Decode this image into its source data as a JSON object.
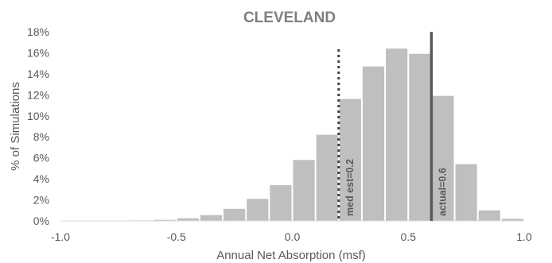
{
  "chart_data": {
    "type": "bar",
    "title": "CLEVELAND",
    "xlabel": "Annual Net Absorption (msf)",
    "ylabel": "% of Simulations",
    "xlim": [
      -1.0,
      1.0
    ],
    "ylim": [
      0,
      18
    ],
    "x_ticks": [
      "-1.0",
      "-0.5",
      "0.0",
      "0.5",
      "1.0"
    ],
    "x_tick_values": [
      -1.0,
      -0.5,
      0.0,
      0.5,
      1.0
    ],
    "y_ticks": [
      "0%",
      "2%",
      "4%",
      "6%",
      "8%",
      "10%",
      "12%",
      "14%",
      "16%",
      "18%"
    ],
    "y_tick_values": [
      0,
      2,
      4,
      6,
      8,
      10,
      12,
      14,
      16,
      18
    ],
    "bin_width": 0.1,
    "bins": [
      {
        "x0": -0.8,
        "value": 0.03
      },
      {
        "x0": -0.7,
        "value": 0.05
      },
      {
        "x0": -0.6,
        "value": 0.1
      },
      {
        "x0": -0.5,
        "value": 0.25
      },
      {
        "x0": -0.4,
        "value": 0.55
      },
      {
        "x0": -0.3,
        "value": 1.15
      },
      {
        "x0": -0.2,
        "value": 2.1
      },
      {
        "x0": -0.1,
        "value": 3.4
      },
      {
        "x0": 0.0,
        "value": 5.8
      },
      {
        "x0": 0.1,
        "value": 8.2
      },
      {
        "x0": 0.2,
        "value": 11.6
      },
      {
        "x0": 0.3,
        "value": 14.7
      },
      {
        "x0": 0.4,
        "value": 16.4
      },
      {
        "x0": 0.5,
        "value": 15.9
      },
      {
        "x0": 0.6,
        "value": 11.9
      },
      {
        "x0": 0.7,
        "value": 5.4
      },
      {
        "x0": 0.8,
        "value": 1.0
      },
      {
        "x0": 0.9,
        "value": 0.2
      }
    ],
    "bar_color": "#bfbfbf",
    "reference_lines": [
      {
        "label": "med est=0.2",
        "x": 0.2,
        "style": "dotted",
        "color": "#404040"
      },
      {
        "label": "actual=0.6",
        "x": 0.6,
        "style": "solid",
        "color": "#595959"
      }
    ],
    "grid": false,
    "legend": "none"
  }
}
